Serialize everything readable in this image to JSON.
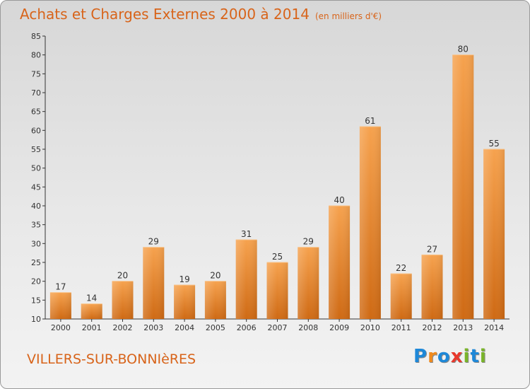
{
  "chart_data": {
    "type": "bar",
    "title": "Achats et Charges Externes 2000 à 2014",
    "unit": "(en milliers d'€)",
    "categories": [
      "2000",
      "2001",
      "2002",
      "2003",
      "2004",
      "2005",
      "2006",
      "2007",
      "2008",
      "2009",
      "2010",
      "2011",
      "2012",
      "2013",
      "2014"
    ],
    "values": [
      17,
      14,
      20,
      29,
      19,
      20,
      31,
      25,
      29,
      40,
      61,
      22,
      27,
      80,
      55
    ],
    "ylim": [
      10,
      85
    ],
    "yticks": [
      10,
      15,
      20,
      25,
      30,
      35,
      40,
      45,
      50,
      55,
      60,
      65,
      70,
      75,
      80,
      85
    ],
    "xlabel": "",
    "ylabel": "",
    "grid": false,
    "bar_color": "#f0882c",
    "title_color": "#d8641a"
  },
  "commune": "VILLERS-SUR-BONNIèRES",
  "logo": {
    "text": "Proxiti",
    "letters": [
      {
        "char": "P",
        "color": "#1e88d8"
      },
      {
        "char": "r",
        "color": "#f08a1c"
      },
      {
        "char": "o",
        "color": "#1e88d8"
      },
      {
        "char": "x",
        "color": "#e8392c"
      },
      {
        "char": "i",
        "color": "#7ab42a"
      },
      {
        "char": "t",
        "color": "#1e88d8"
      },
      {
        "char": "i",
        "color": "#7ab42a"
      }
    ]
  }
}
